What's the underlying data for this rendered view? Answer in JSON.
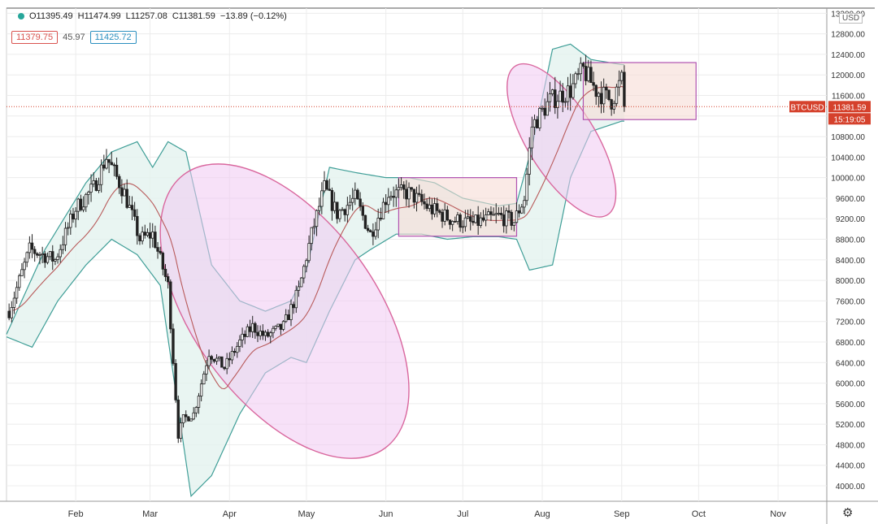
{
  "ohlc": {
    "open": "O11395.49",
    "high": "H11474.99",
    "low": "L11257.08",
    "close": "C11381.59",
    "change": "−13.89 (−0.12%)"
  },
  "indicators": {
    "lower": "11379.75",
    "period": "45.97",
    "upper": "11425.72",
    "lower_color": "#d9534f",
    "upper_color": "#2a8fbf"
  },
  "currency": "USD",
  "symbol_tag": "BTCUSD",
  "last_price": "11381.59",
  "countdown": "15:19:05",
  "colors": {
    "band_stroke": "#3f9e97",
    "band_fill": "#e3f2ef",
    "basis": "#b85a5a",
    "ellipse_stroke": "#d9679e",
    "ellipse_fill": "#f1c8f2",
    "rect_stroke": "#b052b0",
    "rect_fill": "#f6dcd6",
    "price_tag": "#d5412c",
    "candle": "#222222"
  },
  "chart_data": {
    "type": "candlestick",
    "symbol": "BTCUSD",
    "x_ticks": [
      "Feb",
      "Mar",
      "Apr",
      "May",
      "Jun",
      "Jul",
      "Aug",
      "Sep",
      "Oct",
      "Nov"
    ],
    "y_ticks": [
      4000,
      4400,
      4800,
      5200,
      5600,
      6000,
      6400,
      6800,
      7200,
      7600,
      8000,
      8400,
      8800,
      9200,
      9600,
      10000,
      10400,
      10800,
      11200,
      11600,
      12000,
      12400,
      12800,
      13200
    ],
    "ylim": [
      3700,
      13300
    ],
    "price_series": [
      [
        "2020-01-06",
        7400
      ],
      [
        "2020-01-14",
        8600
      ],
      [
        "2020-01-24",
        8400
      ],
      [
        "2020-02-01",
        9400
      ],
      [
        "2020-02-08",
        9800
      ],
      [
        "2020-02-13",
        10400
      ],
      [
        "2020-02-20",
        9700
      ],
      [
        "2020-02-26",
        8800
      ],
      [
        "2020-03-02",
        8900
      ],
      [
        "2020-03-08",
        7900
      ],
      [
        "2020-03-12",
        5000
      ],
      [
        "2020-03-14",
        5300
      ],
      [
        "2020-03-18",
        5400
      ],
      [
        "2020-03-24",
        6600
      ],
      [
        "2020-03-30",
        6300
      ],
      [
        "2020-04-05",
        6800
      ],
      [
        "2020-04-10",
        7100
      ],
      [
        "2020-04-15",
        6900
      ],
      [
        "2020-04-22",
        7100
      ],
      [
        "2020-04-28",
        7800
      ],
      [
        "2020-05-03",
        8900
      ],
      [
        "2020-05-08",
        9800
      ],
      [
        "2020-05-13",
        9300
      ],
      [
        "2020-05-20",
        9600
      ],
      [
        "2020-05-26",
        8900
      ],
      [
        "2020-06-02",
        9700
      ],
      [
        "2020-06-10",
        9700
      ],
      [
        "2020-06-18",
        9400
      ],
      [
        "2020-06-26",
        9200
      ],
      [
        "2020-07-05",
        9100
      ],
      [
        "2020-07-15",
        9250
      ],
      [
        "2020-07-21",
        9150
      ],
      [
        "2020-07-25",
        9600
      ],
      [
        "2020-07-28",
        11000
      ],
      [
        "2020-08-04",
        11500
      ],
      [
        "2020-08-12",
        11700
      ],
      [
        "2020-08-17",
        12100
      ],
      [
        "2020-08-22",
        11700
      ],
      [
        "2020-08-28",
        11500
      ],
      [
        "2020-09-01",
        11900
      ],
      [
        "2020-09-02",
        11382
      ]
    ],
    "bollinger_upper": [
      [
        "2020-01-05",
        6950
      ],
      [
        "2020-01-20",
        8600
      ],
      [
        "2020-02-05",
        9900
      ],
      [
        "2020-02-15",
        10500
      ],
      [
        "2020-02-25",
        10700
      ],
      [
        "2020-03-02",
        10200
      ],
      [
        "2020-03-08",
        10700
      ],
      [
        "2020-03-15",
        10500
      ],
      [
        "2020-03-25",
        8300
      ],
      [
        "2020-04-05",
        7600
      ],
      [
        "2020-04-15",
        7400
      ],
      [
        "2020-04-25",
        7600
      ],
      [
        "2020-05-01",
        8200
      ],
      [
        "2020-05-10",
        10200
      ],
      [
        "2020-05-20",
        10100
      ],
      [
        "2020-06-01",
        10000
      ],
      [
        "2020-06-10",
        10000
      ],
      [
        "2020-06-20",
        9900
      ],
      [
        "2020-07-01",
        9600
      ],
      [
        "2020-07-15",
        9450
      ],
      [
        "2020-07-22",
        9500
      ],
      [
        "2020-07-28",
        10600
      ],
      [
        "2020-08-05",
        12500
      ],
      [
        "2020-08-12",
        12600
      ],
      [
        "2020-08-20",
        12300
      ],
      [
        "2020-09-01",
        12200
      ]
    ],
    "bollinger_lower": [
      [
        "2020-01-05",
        6900
      ],
      [
        "2020-01-15",
        6700
      ],
      [
        "2020-01-25",
        7600
      ],
      [
        "2020-02-05",
        8300
      ],
      [
        "2020-02-15",
        8800
      ],
      [
        "2020-02-25",
        8500
      ],
      [
        "2020-03-05",
        7900
      ],
      [
        "2020-03-12",
        5500
      ],
      [
        "2020-03-17",
        3800
      ],
      [
        "2020-03-25",
        4200
      ],
      [
        "2020-04-05",
        5400
      ],
      [
        "2020-04-15",
        6200
      ],
      [
        "2020-04-25",
        6500
      ],
      [
        "2020-05-01",
        6400
      ],
      [
        "2020-05-10",
        7400
      ],
      [
        "2020-05-20",
        8400
      ],
      [
        "2020-05-26",
        8600
      ],
      [
        "2020-06-05",
        8900
      ],
      [
        "2020-06-15",
        8900
      ],
      [
        "2020-06-25",
        8800
      ],
      [
        "2020-07-05",
        8850
      ],
      [
        "2020-07-15",
        8850
      ],
      [
        "2020-07-22",
        8800
      ],
      [
        "2020-07-27",
        8200
      ],
      [
        "2020-08-05",
        8300
      ],
      [
        "2020-08-12",
        10000
      ],
      [
        "2020-08-20",
        10900
      ],
      [
        "2020-09-01",
        11100
      ]
    ],
    "annotations": [
      {
        "kind": "ellipse",
        "from": "2020-03-11",
        "to": "2020-06-04",
        "low": 4500,
        "high": 10300
      },
      {
        "kind": "rectangle",
        "from": "2020-06-06",
        "to": "2020-07-22",
        "low": 8860,
        "high": 10000
      },
      {
        "kind": "ellipse",
        "from": "2020-07-20",
        "to": "2020-08-28",
        "low": 9150,
        "high": 12300
      },
      {
        "kind": "rectangle",
        "from": "2020-08-17",
        "to": "2020-09-30",
        "low": 11130,
        "high": 12240
      }
    ],
    "last_price_line": 11381.59
  }
}
